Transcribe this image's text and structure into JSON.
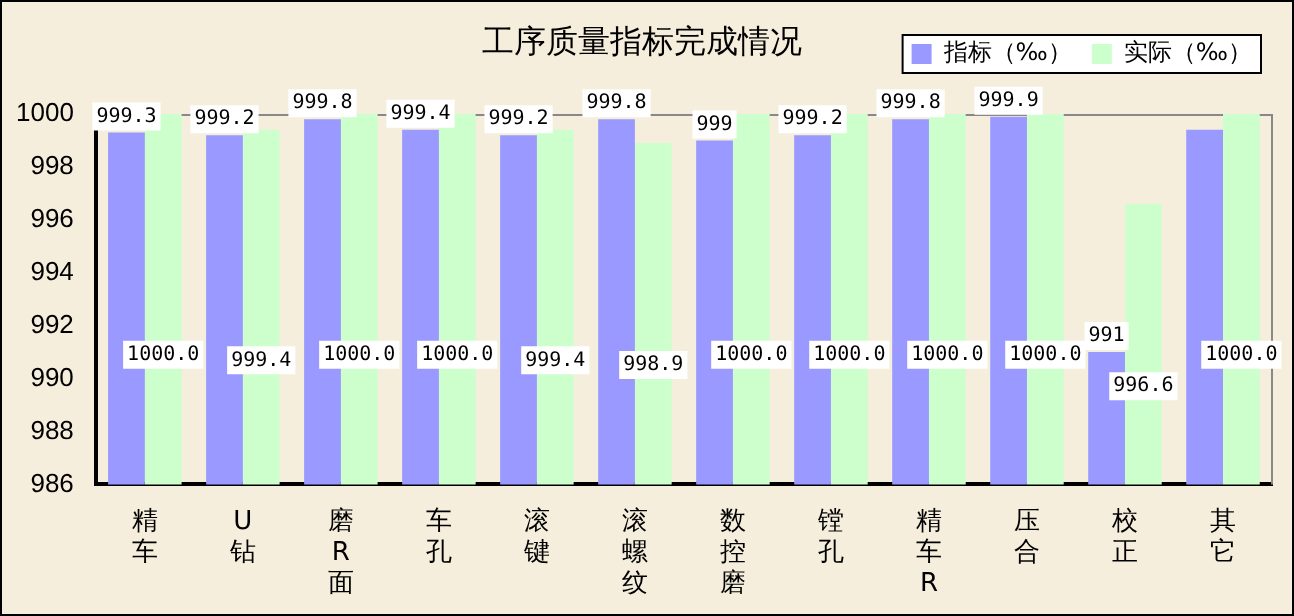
{
  "chart_data": {
    "type": "bar",
    "title": "工序质量指标完成情况",
    "categories": [
      "精车",
      "U钻",
      "磨R面",
      "车孔",
      "滚键",
      "滚螺纹",
      "数控磨",
      "镗孔",
      "精车R",
      "压合",
      "校正",
      "其它"
    ],
    "series": [
      {
        "name": "指标（‰）",
        "color": "#9999ff",
        "values": [
          999.3,
          999.2,
          999.8,
          999.4,
          999.2,
          999.8,
          999,
          999.2,
          999.8,
          999.9,
          991,
          999.4
        ],
        "value_labels": [
          "999.3",
          "999.2",
          "999.8",
          "999.4",
          "999.2",
          "999.8",
          "999",
          "999.2",
          "999.8",
          "999.9",
          "991",
          null
        ]
      },
      {
        "name": "实际（‰）",
        "color": "#ccffcc",
        "values": [
          1000,
          999.4,
          1000,
          1000,
          999.4,
          998.9,
          1000,
          1000,
          1000,
          1000,
          996.6,
          1000
        ],
        "value_labels": [
          "1000.0",
          "999.4",
          "1000.0",
          "1000.0",
          "999.4",
          "998.9",
          "1000.0",
          "1000.0",
          "1000.0",
          "1000.0",
          "996.6",
          "1000.0"
        ]
      }
    ],
    "ylim": [
      986,
      1000
    ],
    "yticks": [
      986,
      988,
      990,
      992,
      994,
      996,
      998,
      1000
    ],
    "grid": false,
    "legend": "top right"
  }
}
